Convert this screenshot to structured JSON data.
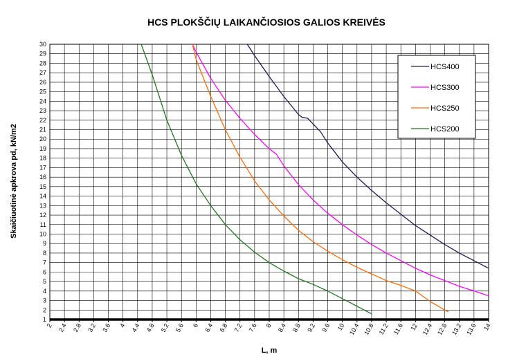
{
  "chart_data": {
    "type": "line",
    "title": "HCS PLOKŠČIŲ LAIKANČIOSIOS GALIOS KREIVĖS",
    "xlabel": "L, m",
    "ylabel": "Skaičiuotinė apkrova pd, kN/m2",
    "xlim": [
      2,
      14
    ],
    "ylim": [
      1,
      30
    ],
    "x_ticks": [
      "2",
      "2.4",
      "2.8",
      "3.2",
      "3.6",
      "4",
      "4.4",
      "4.8",
      "5.2",
      "5.6",
      "6",
      "6.4",
      "6.8",
      "7.2",
      "7.6",
      "8",
      "8.4",
      "8.8",
      "9.2",
      "9.6",
      "10",
      "10.4",
      "10.8",
      "11.2",
      "11.6",
      "12",
      "12.4",
      "12.8",
      "13.2",
      "13.6",
      "14"
    ],
    "y_ticks": [
      "1",
      "2",
      "3",
      "4",
      "5",
      "6",
      "7",
      "8",
      "9",
      "10",
      "11",
      "12",
      "13",
      "14",
      "15",
      "16",
      "17",
      "18",
      "19",
      "20",
      "21",
      "22",
      "23",
      "24",
      "25",
      "26",
      "27",
      "28",
      "29",
      "30"
    ],
    "grid": true,
    "legend_position": "top-right",
    "series": [
      {
        "name": "HCS400",
        "color": "#1a1a5e",
        "points": [
          [
            7.4,
            30
          ],
          [
            7.6,
            28.8
          ],
          [
            8.0,
            26.6
          ],
          [
            8.4,
            24.5
          ],
          [
            8.8,
            22.6
          ],
          [
            8.9,
            22.3
          ],
          [
            9.05,
            22.2
          ],
          [
            9.2,
            21.6
          ],
          [
            9.4,
            20.8
          ],
          [
            9.6,
            19.6
          ],
          [
            10.0,
            17.6
          ],
          [
            10.4,
            16.0
          ],
          [
            10.8,
            14.6
          ],
          [
            11.2,
            13.3
          ],
          [
            11.6,
            12.1
          ],
          [
            12.0,
            10.9
          ],
          [
            12.4,
            9.9
          ],
          [
            12.8,
            8.9
          ],
          [
            13.2,
            8.0
          ],
          [
            13.6,
            7.2
          ],
          [
            14.0,
            6.4
          ]
        ]
      },
      {
        "name": "HCS300",
        "color": "#ff00ff",
        "points": [
          [
            5.9,
            30
          ],
          [
            6.0,
            29.2
          ],
          [
            6.4,
            26.4
          ],
          [
            6.8,
            24.1
          ],
          [
            7.2,
            22.2
          ],
          [
            7.6,
            20.5
          ],
          [
            8.0,
            19.0
          ],
          [
            8.2,
            18.4
          ],
          [
            8.4,
            17.2
          ],
          [
            8.8,
            15.2
          ],
          [
            9.2,
            13.6
          ],
          [
            9.6,
            12.2
          ],
          [
            10.0,
            11.0
          ],
          [
            10.4,
            9.9
          ],
          [
            10.8,
            8.9
          ],
          [
            11.2,
            8.0
          ],
          [
            11.6,
            7.2
          ],
          [
            12.0,
            6.4
          ],
          [
            12.4,
            5.7
          ],
          [
            12.8,
            5.1
          ],
          [
            13.2,
            4.5
          ],
          [
            13.6,
            4.0
          ],
          [
            14.0,
            3.5
          ]
        ]
      },
      {
        "name": "HCS250",
        "color": "#ff6a00",
        "points": [
          [
            5.9,
            30
          ],
          [
            6.0,
            28.4
          ],
          [
            6.4,
            24.5
          ],
          [
            6.8,
            21.0
          ],
          [
            7.2,
            18.1
          ],
          [
            7.6,
            15.6
          ],
          [
            8.0,
            13.6
          ],
          [
            8.4,
            11.9
          ],
          [
            8.8,
            10.4
          ],
          [
            9.2,
            9.2
          ],
          [
            9.6,
            8.2
          ],
          [
            10.0,
            7.3
          ],
          [
            10.4,
            6.5
          ],
          [
            10.8,
            5.8
          ],
          [
            11.2,
            5.1
          ],
          [
            11.6,
            4.6
          ],
          [
            12.0,
            4.0
          ],
          [
            12.4,
            2.9
          ],
          [
            12.8,
            2.0
          ],
          [
            12.9,
            1.8
          ]
        ]
      },
      {
        "name": "HCS200",
        "color": "#1a7a1a",
        "points": [
          [
            4.5,
            30
          ],
          [
            4.8,
            26.8
          ],
          [
            5.2,
            22.0
          ],
          [
            5.6,
            18.3
          ],
          [
            6.0,
            15.3
          ],
          [
            6.4,
            13.0
          ],
          [
            6.8,
            11.0
          ],
          [
            7.2,
            9.4
          ],
          [
            7.6,
            8.1
          ],
          [
            8.0,
            7.0
          ],
          [
            8.4,
            6.1
          ],
          [
            8.8,
            5.3
          ],
          [
            9.2,
            4.7
          ],
          [
            9.6,
            4.0
          ],
          [
            10.0,
            3.2
          ],
          [
            10.4,
            2.4
          ],
          [
            10.8,
            1.6
          ]
        ]
      }
    ]
  }
}
